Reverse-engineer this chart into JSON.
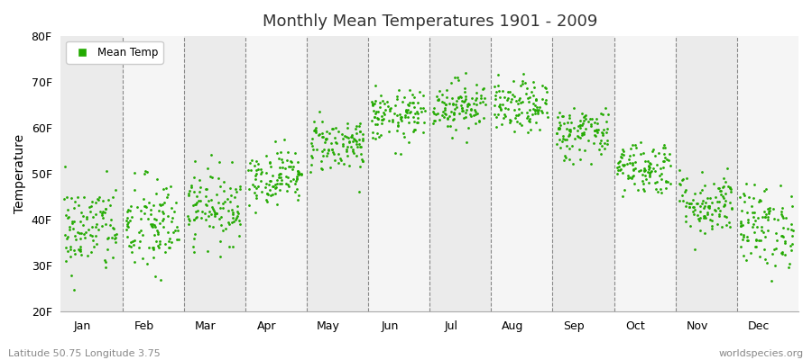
{
  "title": "Monthly Mean Temperatures 1901 - 2009",
  "ylabel": "Temperature",
  "ylim": [
    20,
    80
  ],
  "yticks": [
    20,
    30,
    40,
    50,
    60,
    70,
    80
  ],
  "ytick_labels": [
    "20F",
    "30F",
    "40F",
    "50F",
    "60F",
    "70F",
    "80F"
  ],
  "month_labels": [
    "Jan",
    "Feb",
    "Mar",
    "Apr",
    "May",
    "Jun",
    "Jul",
    "Aug",
    "Sep",
    "Oct",
    "Nov",
    "Dec"
  ],
  "dot_color": "#22AA00",
  "dot_size": 4,
  "background_color": "#ffffff",
  "plot_bg_color": "#ebebeb",
  "alt_band_color": "#f5f5f5",
  "grid_color": "#888888",
  "legend_label": "Mean Temp",
  "footer_left": "Latitude 50.75 Longitude 3.75",
  "footer_right": "worldspecies.org",
  "years": 109,
  "monthly_means_F": [
    38.0,
    38.5,
    43.0,
    49.5,
    56.5,
    62.5,
    65.0,
    64.5,
    59.0,
    51.5,
    43.5,
    38.5
  ],
  "monthly_stds_F": [
    5.0,
    5.5,
    4.0,
    3.0,
    3.0,
    2.8,
    2.8,
    2.8,
    3.0,
    3.0,
    3.5,
    4.5
  ]
}
